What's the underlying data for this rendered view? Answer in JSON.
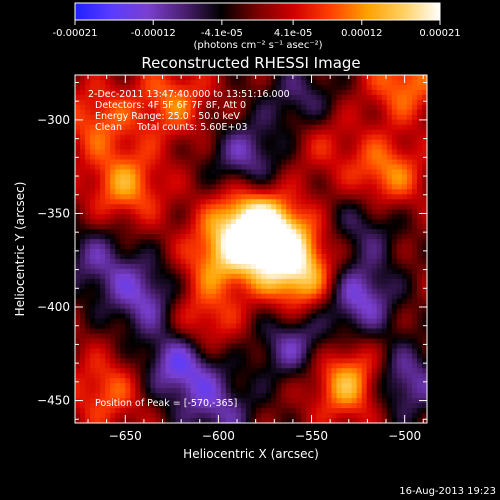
{
  "colorbar": {
    "ticks": [
      "-0.00021",
      "-0.00012",
      "-4.1e-05",
      "4.1e-05",
      "0.00012",
      "0.00021"
    ],
    "unit_label": "(photons cm⁻² s⁻¹ asec⁻²)"
  },
  "footer": {
    "timestamp": "16-Aug-2013 19:23"
  },
  "chart_data": {
    "type": "heatmap",
    "title": "Reconstructed RHESSI Image",
    "xlabel": "Heliocentric X (arcsec)",
    "ylabel": "Heliocentric Y (arcsec)",
    "xlim": [
      -677,
      -488
    ],
    "ylim": [
      -462,
      -276
    ],
    "x_ticks": [
      -650,
      -600,
      -550,
      -500
    ],
    "y_ticks": [
      -300,
      -350,
      -400,
      -450
    ],
    "x_tick_labels": [
      "−650",
      "−600",
      "−550",
      "−500"
    ],
    "y_tick_labels": [
      "−300",
      "−350",
      "−400",
      "−450"
    ],
    "value_range": [
      -0.00021,
      0.00021
    ],
    "colormap": [
      "#2020ff",
      "#5a3cff",
      "#7a3fd0",
      "#4a1f70",
      "#000000",
      "#7a0000",
      "#d00000",
      "#ff4000",
      "#ffa000",
      "#ffd060",
      "#ffffff"
    ],
    "annotations": [
      "2-Dec-2011 13:47:40.000 to 13:51:16.000",
      "Detectors: 4F 5F 6F 7F 8F, Att 0",
      "Energy Range: 25.0 - 50.0 keV",
      "Clean     Total counts: 5.60E+03"
    ],
    "peak_label": "Position of Peak = [-570,-365]",
    "peak": [
      -570,
      -365
    ],
    "blobs": [
      {
        "x": -570,
        "y": -365,
        "v": 0.00021
      },
      {
        "x": -585,
        "y": -355,
        "v": 0.00016
      },
      {
        "x": -555,
        "y": -385,
        "v": 0.00015
      },
      {
        "x": -600,
        "y": -375,
        "v": 0.00011
      },
      {
        "x": -610,
        "y": -410,
        "v": 0.0001
      },
      {
        "x": -650,
        "y": -335,
        "v": 0.00012
      },
      {
        "x": -665,
        "y": -300,
        "v": 9e-05
      },
      {
        "x": -625,
        "y": -290,
        "v": 0.0001
      },
      {
        "x": -660,
        "y": -445,
        "v": 9e-05
      },
      {
        "x": -530,
        "y": -440,
        "v": 0.00015
      },
      {
        "x": -510,
        "y": -330,
        "v": 0.00012
      },
      {
        "x": -500,
        "y": -280,
        "v": 0.00011
      },
      {
        "x": -545,
        "y": -310,
        "v": 6e-05
      },
      {
        "x": -640,
        "y": -395,
        "v": -0.00012
      },
      {
        "x": -620,
        "y": -430,
        "v": -0.00016
      },
      {
        "x": -560,
        "y": -420,
        "v": -0.00011
      },
      {
        "x": -525,
        "y": -395,
        "v": -0.00014
      },
      {
        "x": -500,
        "y": -440,
        "v": -0.00012
      },
      {
        "x": -585,
        "y": -320,
        "v": -0.00011
      },
      {
        "x": -520,
        "y": -355,
        "v": -8e-05
      },
      {
        "x": -665,
        "y": -375,
        "v": -9e-05
      },
      {
        "x": -600,
        "y": -455,
        "v": -0.0001
      },
      {
        "x": -555,
        "y": -290,
        "v": -9e-05
      }
    ]
  }
}
